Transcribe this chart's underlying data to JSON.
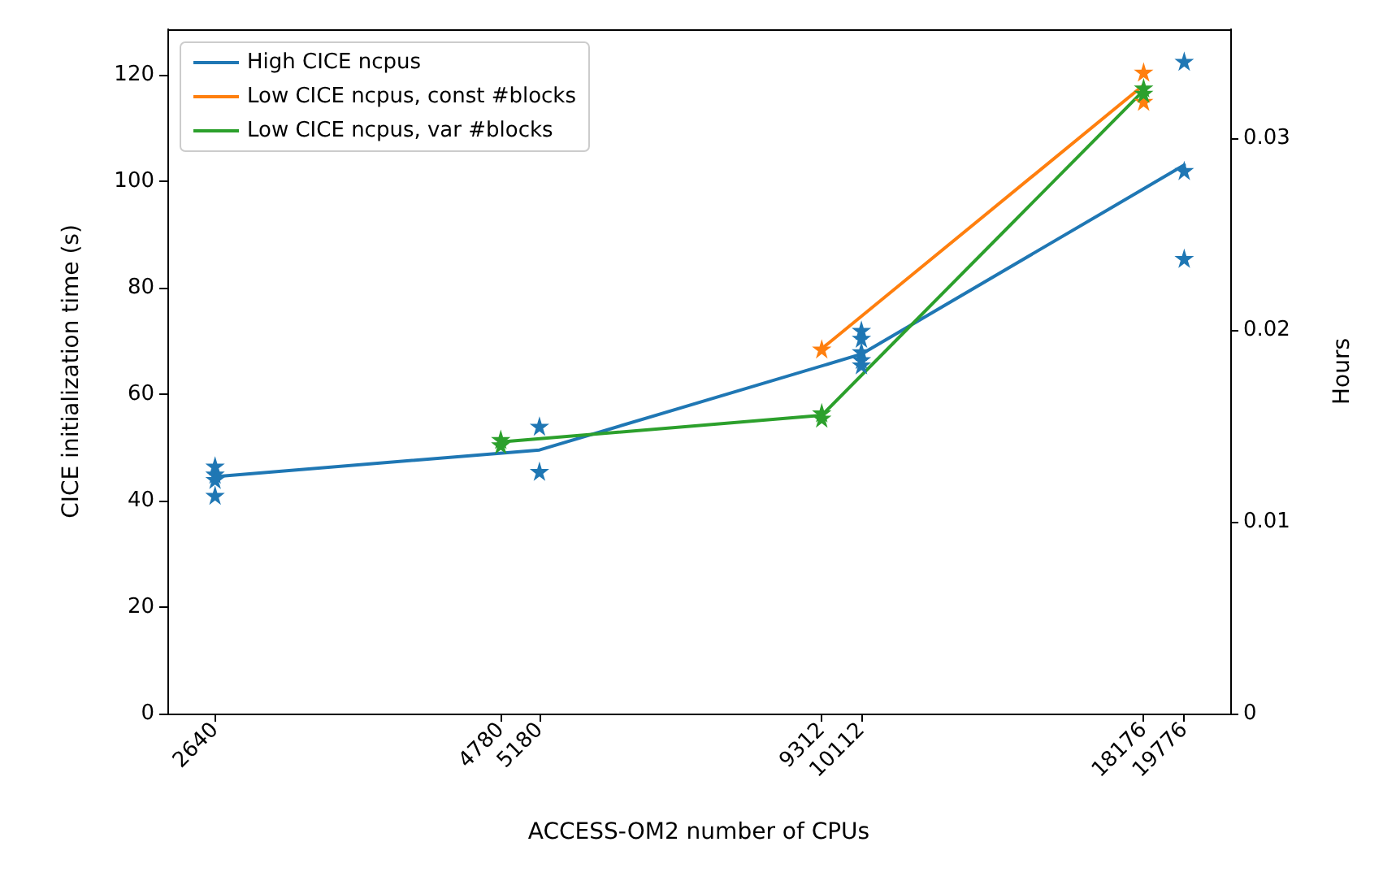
{
  "chart_data": {
    "type": "line",
    "xlabel": "ACCESS-OM2 number of CPUs",
    "ylabel": "CICE initialization time (s)",
    "y2label": "Hours",
    "log": "x",
    "xlim": [
      2391,
      21760
    ],
    "xticks": [
      2640,
      4780,
      5180,
      9312,
      10112,
      18176,
      19776
    ],
    "ylim": [
      0,
      128.5
    ],
    "yticks": [
      0,
      20,
      40,
      60,
      80,
      100,
      120
    ],
    "y2lim": [
      0,
      0.0357
    ],
    "y2ticks": [
      0,
      0.01,
      0.02,
      0.03
    ],
    "grid": false,
    "legend": "top left",
    "marker": "none",
    "line_style": "solid",
    "series": [
      {
        "name": "High CICE ncpus",
        "color": "#1f77b4",
        "x": [
          2640,
          5180,
          10112,
          19776
        ],
        "values": [
          44.5,
          49.5,
          67.5,
          103
        ]
      },
      {
        "name": "Low CICE ncpus, const #blocks",
        "color": "#ff7f0e",
        "x": [
          9312,
          18176
        ],
        "values": [
          68.5,
          118
        ]
      },
      {
        "name": "Low CICE ncpus, var #blocks",
        "color": "#2ca02c",
        "x": [
          4780,
          9312,
          18176
        ],
        "values": [
          51,
          56,
          117
        ]
      },
      {
        "type": "scatter",
        "marker": "star",
        "color": "#1f77b4",
        "x": [
          2640,
          2640,
          2640,
          2640,
          5180,
          5180,
          10112,
          10112,
          10112,
          10112,
          10112,
          19776,
          19776,
          19776
        ],
        "values": [
          46.5,
          45,
          44,
          41,
          54,
          45.5,
          72,
          70.5,
          68,
          66.5,
          65.5,
          122.5,
          102,
          85.5
        ]
      },
      {
        "type": "scatter",
        "marker": "star",
        "color": "#ff7f0e",
        "x": [
          9312,
          18176,
          18176
        ],
        "values": [
          68.5,
          120.5,
          115
        ]
      },
      {
        "type": "scatter",
        "marker": "star",
        "color": "#2ca02c",
        "x": [
          4780,
          4780,
          9312,
          9312,
          18176,
          18176
        ],
        "values": [
          51.5,
          50.5,
          56.5,
          55.5,
          117.5,
          116.5
        ]
      }
    ]
  }
}
